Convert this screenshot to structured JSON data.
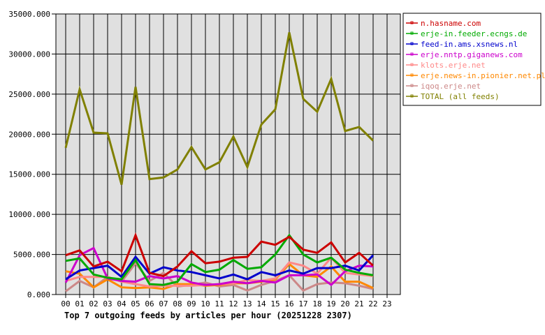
{
  "chart_data": {
    "type": "line",
    "title": "Top 7 outgoing feeds by articles per hour (20251228 2307)",
    "xlabel": "",
    "ylabel": "",
    "ylim": [
      0,
      35000
    ],
    "grid": true,
    "legend_position": "right-top",
    "x": [
      "00",
      "01",
      "02",
      "03",
      "04",
      "05",
      "06",
      "07",
      "08",
      "09",
      "10",
      "11",
      "12",
      "13",
      "14",
      "15",
      "16",
      "17",
      "18",
      "19",
      "20",
      "21",
      "22",
      "23"
    ],
    "y_ticks": [
      "0.000",
      "5000.000",
      "10000.000",
      "15000.000",
      "20000.000",
      "25000.000",
      "30000.000",
      "35000.000"
    ],
    "series": [
      {
        "name": "n.hasname.com",
        "color": "#cc0000",
        "values": [
          4900,
          5500,
          3500,
          4100,
          2900,
          7400,
          2700,
          2300,
          3500,
          5400,
          3900,
          4100,
          4600,
          4700,
          6600,
          6200,
          7200,
          5600,
          5200,
          6500,
          4000,
          5200,
          3600
        ]
      },
      {
        "name": "erje-in.feeder.ecngs.de",
        "color": "#00aa00",
        "values": [
          4200,
          4500,
          2500,
          2100,
          1900,
          4300,
          1300,
          1200,
          1600,
          3800,
          2800,
          3100,
          4300,
          3200,
          3400,
          5000,
          7400,
          5000,
          4000,
          4600,
          3100,
          2700,
          2400
        ]
      },
      {
        "name": "feed-in.ams.xsnews.nl",
        "color": "#0000cc",
        "values": [
          1900,
          3000,
          3300,
          3600,
          2200,
          4700,
          2600,
          3400,
          3000,
          2800,
          2400,
          2000,
          2500,
          1900,
          2800,
          2400,
          3000,
          2600,
          3300,
          3300,
          3600,
          3000,
          4900
        ]
      },
      {
        "name": "erje.nntp.giganews.com",
        "color": "#cc00cc",
        "values": [
          1500,
          4900,
          5800,
          2000,
          1700,
          1600,
          2300,
          2000,
          2300,
          1500,
          1200,
          1300,
          1600,
          1400,
          1700,
          1500,
          2400,
          2400,
          2500,
          1200,
          2900,
          3600,
          3500
        ]
      },
      {
        "name": "klots.erje.net",
        "color": "#ff8888",
        "values": [
          1700,
          2200,
          2200,
          2200,
          1600,
          1300,
          1000,
          1100,
          1100,
          1100,
          1200,
          1300,
          1400,
          1800,
          1700,
          2000,
          4000,
          3600,
          2600,
          4600,
          2700,
          2500,
          2300
        ]
      },
      {
        "name": "erje.news-in.pionier.net.pl",
        "color": "#ff8800",
        "values": [
          2900,
          2600,
          900,
          1900,
          900,
          800,
          900,
          700,
          1300,
          1300,
          1100,
          1200,
          1400,
          1400,
          1600,
          1900,
          3800,
          2400,
          2200,
          3500,
          1600,
          1600,
          800
        ]
      },
      {
        "name": "iqoq.erje.net",
        "color": "#cc8888",
        "values": [
          400,
          1700,
          900,
          2200,
          1600,
          3900,
          1700,
          2700,
          1000,
          1200,
          1500,
          1000,
          1200,
          500,
          1200,
          1700,
          2400,
          500,
          1300,
          1500,
          1400,
          1100,
          700
        ]
      },
      {
        "name": "TOTAL (all feeds)",
        "color": "#808000",
        "values": [
          18300,
          25600,
          20200,
          20100,
          13700,
          25900,
          14400,
          14600,
          15600,
          18400,
          15600,
          16500,
          19700,
          15900,
          21200,
          23100,
          32700,
          24400,
          22800,
          26900,
          20400,
          20900,
          19200
        ]
      }
    ]
  },
  "legend": {
    "items": [
      {
        "label": "n.hasname.com",
        "color": "#cc0000"
      },
      {
        "label": "erje-in.feeder.ecngs.de",
        "color": "#00aa00"
      },
      {
        "label": "feed-in.ams.xsnews.nl",
        "color": "#0000cc"
      },
      {
        "label": "erje.nntp.giganews.com",
        "color": "#cc00cc"
      },
      {
        "label": "klots.erje.net",
        "color": "#ff8888"
      },
      {
        "label": "erje.news-in.pionier.net.pl",
        "color": "#ff8800"
      },
      {
        "label": "iqoq.erje.net",
        "color": "#cc8888"
      },
      {
        "label": "TOTAL (all feeds)",
        "color": "#808000"
      }
    ]
  },
  "colors": {
    "plot_background": "#e0e0e0",
    "grid": "#000000",
    "page_background": "#ffffff"
  }
}
